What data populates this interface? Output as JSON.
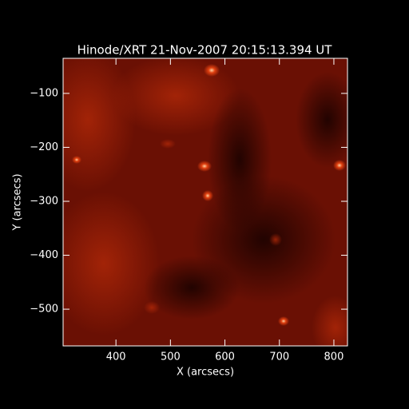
{
  "chart_data": {
    "type": "image",
    "title": "Hinode/XRT 21-Nov-2007 20:15:13.394 UT",
    "xlabel": "X (arcsecs)",
    "ylabel": "Y (arcsecs)",
    "xlim": [
      303,
      825
    ],
    "ylim": [
      -568,
      -35
    ],
    "xticks": [
      400,
      500,
      600,
      700,
      800
    ],
    "yticks": [
      {
        "value": -100,
        "label": "−100"
      },
      {
        "value": -200,
        "label": "−200"
      },
      {
        "value": -300,
        "label": "−300"
      },
      {
        "value": -400,
        "label": "−400"
      },
      {
        "value": -500,
        "label": "−500"
      }
    ]
  }
}
